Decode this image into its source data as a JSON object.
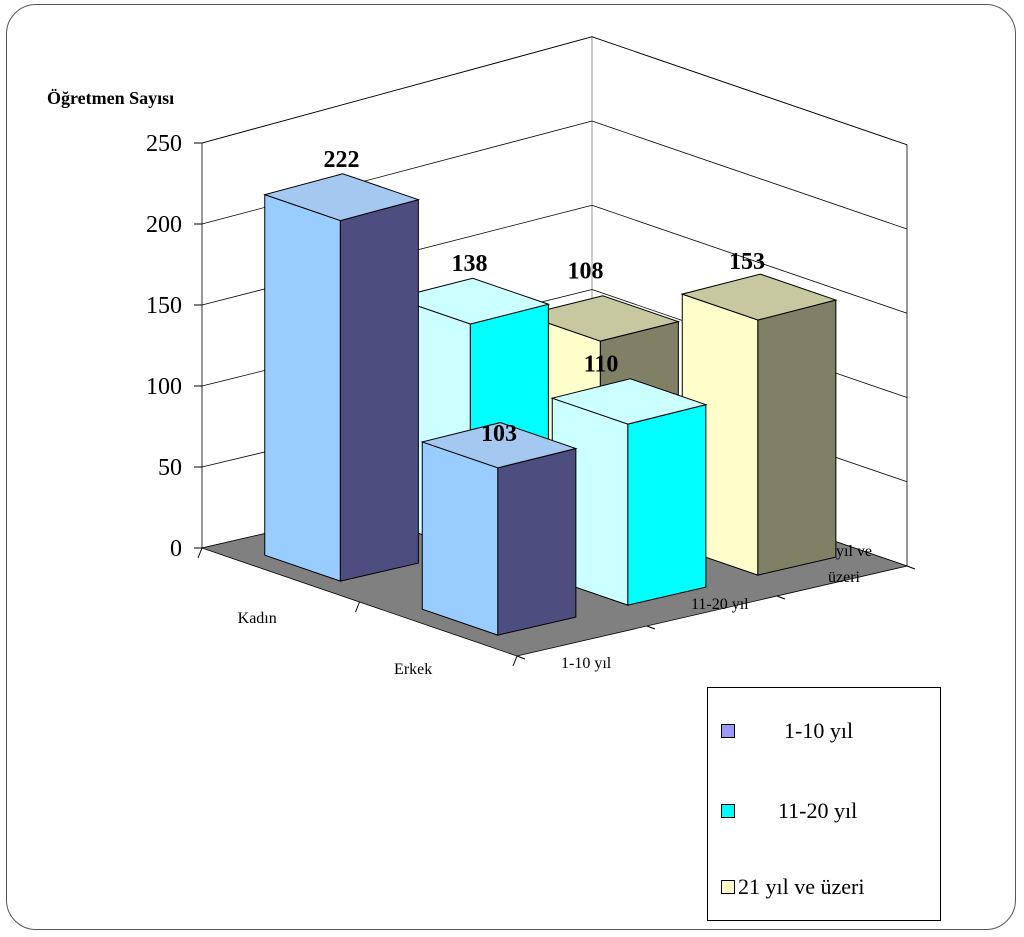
{
  "chart_data": {
    "type": "bar",
    "title": "",
    "ylabel": "Öğretmen Sayısı",
    "ylim": [
      0,
      250
    ],
    "yticks": [
      "0",
      "50",
      "100",
      "150",
      "200",
      "250"
    ],
    "categories": [
      "Kadın",
      "Erkek"
    ],
    "depth_labels": [
      "1-10 yıl",
      "11-20 yıl",
      "21 yıl ve üzeri"
    ],
    "series": [
      {
        "name": "1-10 yıl",
        "values": [
          222,
          103
        ],
        "colors": {
          "front": "#99CCFF",
          "side": "#4D4D80",
          "top": "#A4C8F0"
        }
      },
      {
        "name": "11-20 yıl",
        "values": [
          138,
          110
        ],
        "colors": {
          "front": "#CCFFFF",
          "side": "#00FFFF",
          "top": "#CCFFFF"
        }
      },
      {
        "name": "21 yıl ve üzeri",
        "values": [
          108,
          153
        ],
        "colors": {
          "front": "#FFFFCC",
          "side": "#808066",
          "top": "#C8C8A0"
        }
      }
    ],
    "legend_position": "bottom-right",
    "grid": true,
    "colors": {
      "floor": "#808080",
      "grid": "#000000"
    }
  },
  "legend": {
    "items": [
      {
        "label": "1-10 yıl",
        "swatch": "#9999FF"
      },
      {
        "label": "11-20 yıl",
        "swatch": "#00FFFF"
      },
      {
        "label": "21 yıl ve üzeri",
        "swatch": "#FFFFCC"
      }
    ]
  }
}
